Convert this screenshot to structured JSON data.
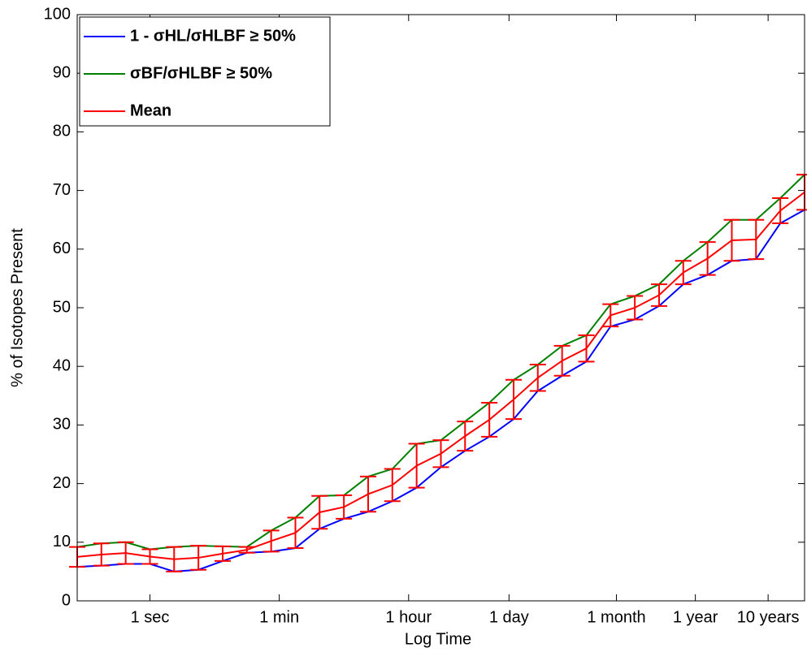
{
  "chart_data": {
    "type": "line",
    "xlabel": "Log Time",
    "ylabel": "% of Isotopes Present",
    "xscale": "log",
    "xlim": [
      0.1,
      1000000000
    ],
    "ylim": [
      0,
      100
    ],
    "xticks": [
      {
        "value": 1,
        "label": "1 sec"
      },
      {
        "value": 60,
        "label": "1 min"
      },
      {
        "value": 3600,
        "label": "1 hour"
      },
      {
        "value": 86400,
        "label": "1 day"
      },
      {
        "value": 2592000,
        "label": "1 month"
      },
      {
        "value": 31536000,
        "label": "1 year"
      },
      {
        "value": 315360000,
        "label": "10 years"
      }
    ],
    "yticks": [
      0,
      10,
      20,
      30,
      40,
      50,
      60,
      70,
      80,
      90,
      100
    ],
    "grid": false,
    "legend": "upper left",
    "x": [
      0.1,
      0.215,
      0.464,
      1,
      2.15,
      4.64,
      10,
      21.5,
      46.4,
      100,
      215,
      464,
      1000,
      2150,
      4640,
      10000,
      21500,
      46400,
      100000,
      215000,
      464000,
      1000000,
      2150000,
      4640000,
      10000000,
      21500000,
      46400000,
      100000000,
      215000000,
      464000000,
      1000000000
    ],
    "series": [
      {
        "name": "1 - σHL/σHLBF ≥ 50%",
        "color": "#0000ff",
        "values": [
          5.8,
          6.0,
          6.3,
          6.3,
          5.0,
          5.3,
          6.8,
          8.2,
          8.4,
          9.0,
          12.3,
          14.0,
          15.2,
          17.0,
          19.3,
          22.8,
          25.6,
          28.0,
          31.0,
          35.8,
          38.4,
          40.8,
          46.8,
          48.0,
          50.3,
          54.0,
          55.6,
          58.0,
          58.3,
          64.4,
          66.7
        ]
      },
      {
        "name": "σBF/σHLBF ≥ 50%",
        "color": "#008000",
        "values": [
          9.2,
          9.8,
          10.0,
          8.8,
          9.2,
          9.4,
          9.3,
          9.2,
          12.0,
          14.2,
          17.9,
          18.0,
          21.2,
          22.5,
          26.8,
          27.4,
          30.6,
          33.8,
          37.7,
          40.3,
          43.5,
          45.3,
          50.6,
          52.0,
          54.0,
          58.0,
          61.2,
          65.0,
          65.0,
          68.7,
          72.7
        ]
      },
      {
        "name": "Mean",
        "color": "#ff0000",
        "values": [
          7.5,
          7.9,
          8.15,
          7.55,
          7.1,
          7.35,
          8.05,
          8.7,
          10.2,
          11.6,
          15.1,
          16.0,
          18.2,
          19.75,
          23.05,
          25.1,
          28.1,
          30.9,
          34.35,
          38.05,
          40.95,
          43.05,
          48.7,
          50.0,
          52.15,
          56.0,
          58.4,
          61.5,
          61.65,
          66.55,
          69.7
        ],
        "errors": [
          1.7,
          1.9,
          1.85,
          1.25,
          2.1,
          2.05,
          1.25,
          0.5,
          1.8,
          2.6,
          2.8,
          2.0,
          3.0,
          2.75,
          3.75,
          2.3,
          2.5,
          2.9,
          3.35,
          2.25,
          2.55,
          2.25,
          1.9,
          2.0,
          1.85,
          2.0,
          2.8,
          3.5,
          3.35,
          2.15,
          3.0
        ]
      }
    ]
  }
}
